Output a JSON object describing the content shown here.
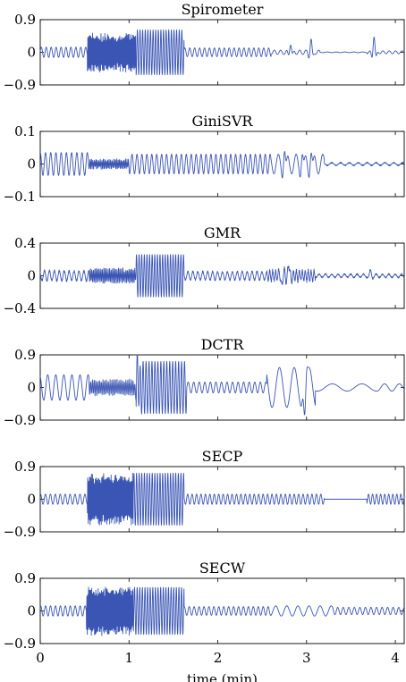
{
  "colors": {
    "signal": "#3a55b4",
    "axis": "#000000"
  },
  "chart_data": [
    {
      "type": "line",
      "title": "Spirometer",
      "ylim": [
        -0.9,
        0.9
      ],
      "yticks": [
        "0.9",
        "0",
        "−0.9"
      ],
      "ytick_values": [
        0.9,
        0,
        -0.9
      ],
      "segments": [
        {
          "from": 0.0,
          "to": 0.53,
          "amp": 0.14,
          "freq": 18
        },
        {
          "from": 0.53,
          "to": 1.08,
          "amp": 0.42,
          "freq": 95,
          "noise": 0.6
        },
        {
          "from": 1.08,
          "to": 1.62,
          "amp": 0.62,
          "freq": 34
        },
        {
          "from": 1.62,
          "to": 2.6,
          "amp": 0.12,
          "freq": 18
        },
        {
          "from": 2.6,
          "to": 3.15,
          "amp": 0.06,
          "freq": 14
        },
        {
          "from": 3.15,
          "to": 3.68,
          "amp": 0.01,
          "freq": 10
        },
        {
          "from": 3.68,
          "to": 4.1,
          "amp": 0.04,
          "freq": 14
        }
      ],
      "spikes": [
        {
          "t": 2.82,
          "a": 0.25
        },
        {
          "t": 3.05,
          "a": 0.35
        },
        {
          "t": 3.76,
          "a": 0.45
        }
      ]
    },
    {
      "type": "line",
      "title": "GiniSVR",
      "ylim": [
        -0.1,
        0.1
      ],
      "yticks": [
        "0.1",
        "0",
        "−0.1"
      ],
      "ytick_values": [
        0.1,
        0,
        -0.1
      ],
      "segments": [
        {
          "from": 0.0,
          "to": 0.55,
          "amp": 0.035,
          "freq": 17
        },
        {
          "from": 0.55,
          "to": 1.0,
          "amp": 0.012,
          "freq": 60,
          "noise": 0.8
        },
        {
          "from": 1.0,
          "to": 2.6,
          "amp": 0.03,
          "freq": 18
        },
        {
          "from": 2.6,
          "to": 3.2,
          "amp": 0.03,
          "freq": 10
        },
        {
          "from": 3.2,
          "to": 4.1,
          "amp": 0.004,
          "freq": 10,
          "noise": 1
        }
      ],
      "spikes": [
        {
          "t": 2.75,
          "a": 0.05
        },
        {
          "t": 2.95,
          "a": 0.04
        },
        {
          "t": 3.05,
          "a": 0.045
        }
      ]
    },
    {
      "type": "line",
      "title": "GMR",
      "ylim": [
        -0.4,
        0.4
      ],
      "yticks": [
        "0.4",
        "0",
        "−0.4"
      ],
      "ytick_values": [
        0.4,
        0,
        -0.4
      ],
      "segments": [
        {
          "from": 0.0,
          "to": 0.55,
          "amp": 0.06,
          "freq": 18,
          "noise": 0.5
        },
        {
          "from": 0.55,
          "to": 1.08,
          "amp": 0.07,
          "freq": 60,
          "noise": 0.8
        },
        {
          "from": 1.08,
          "to": 1.62,
          "amp": 0.26,
          "freq": 34
        },
        {
          "from": 1.62,
          "to": 2.55,
          "amp": 0.05,
          "freq": 18,
          "noise": 0.5
        },
        {
          "from": 2.55,
          "to": 3.1,
          "amp": 0.06,
          "freq": 30,
          "noise": 0.9
        },
        {
          "from": 3.1,
          "to": 4.1,
          "amp": 0.02,
          "freq": 14,
          "noise": 1
        }
      ],
      "spikes": [
        {
          "t": 2.72,
          "a": -0.14
        },
        {
          "t": 2.8,
          "a": 0.15
        },
        {
          "t": 3.72,
          "a": 0.06
        }
      ]
    },
    {
      "type": "line",
      "title": "DCTR",
      "ylim": [
        -0.9,
        0.9
      ],
      "yticks": [
        "0.9",
        "0",
        "−0.9"
      ],
      "ytick_values": [
        0.9,
        0,
        -0.9
      ],
      "segments": [
        {
          "from": 0.0,
          "to": 0.55,
          "amp": 0.35,
          "freq": 11
        },
        {
          "from": 0.55,
          "to": 1.08,
          "amp": 0.18,
          "freq": 50,
          "noise": 0.7
        },
        {
          "from": 1.08,
          "to": 1.65,
          "amp": 0.72,
          "freq": 30
        },
        {
          "from": 1.65,
          "to": 2.55,
          "amp": 0.15,
          "freq": 16
        },
        {
          "from": 2.55,
          "to": 3.1,
          "amp": 0.55,
          "freq": 6
        },
        {
          "from": 3.1,
          "to": 3.8,
          "amp": 0.1,
          "freq": 3
        },
        {
          "from": 3.8,
          "to": 4.1,
          "amp": 0.1,
          "freq": 6
        }
      ],
      "spikes": [
        {
          "t": 2.98,
          "a": -0.6
        },
        {
          "t": 1.1,
          "a": 0.4
        }
      ]
    },
    {
      "type": "line",
      "title": "SECP",
      "ylim": [
        -0.9,
        0.9
      ],
      "yticks": [
        "0.9",
        "0",
        "−0.9"
      ],
      "ytick_values": [
        0.9,
        0,
        -0.9
      ],
      "segments": [
        {
          "from": 0.0,
          "to": 0.53,
          "amp": 0.14,
          "freq": 18
        },
        {
          "from": 0.53,
          "to": 1.05,
          "amp": 0.58,
          "freq": 95,
          "noise": 0.5
        },
        {
          "from": 1.05,
          "to": 1.62,
          "amp": 0.72,
          "freq": 34
        },
        {
          "from": 1.62,
          "to": 3.2,
          "amp": 0.14,
          "freq": 20
        },
        {
          "from": 3.2,
          "to": 3.68,
          "amp": 0.0,
          "freq": 10
        },
        {
          "from": 3.68,
          "to": 4.1,
          "amp": 0.14,
          "freq": 22
        }
      ],
      "spikes": []
    },
    {
      "type": "line",
      "title": "SECW",
      "ylim": [
        -0.9,
        0.9
      ],
      "yticks": [
        "0.9",
        "0",
        "−0.9"
      ],
      "ytick_values": [
        0.9,
        0,
        -0.9
      ],
      "segments": [
        {
          "from": 0.0,
          "to": 0.52,
          "amp": 0.14,
          "freq": 18
        },
        {
          "from": 0.52,
          "to": 1.05,
          "amp": 0.55,
          "freq": 110,
          "noise": 0.5
        },
        {
          "from": 1.05,
          "to": 1.62,
          "amp": 0.65,
          "freq": 34
        },
        {
          "from": 1.62,
          "to": 2.6,
          "amp": 0.12,
          "freq": 18
        },
        {
          "from": 2.6,
          "to": 3.3,
          "amp": 0.14,
          "freq": 8
        },
        {
          "from": 3.3,
          "to": 4.1,
          "amp": 0.1,
          "freq": 16
        }
      ],
      "spikes": []
    }
  ],
  "x_axis": {
    "label": "time (min)",
    "xlim": [
      0,
      4.1
    ],
    "ticks": [
      "0",
      "1",
      "2",
      "3",
      "4"
    ],
    "tick_values": [
      0,
      1,
      2,
      3,
      4
    ]
  }
}
